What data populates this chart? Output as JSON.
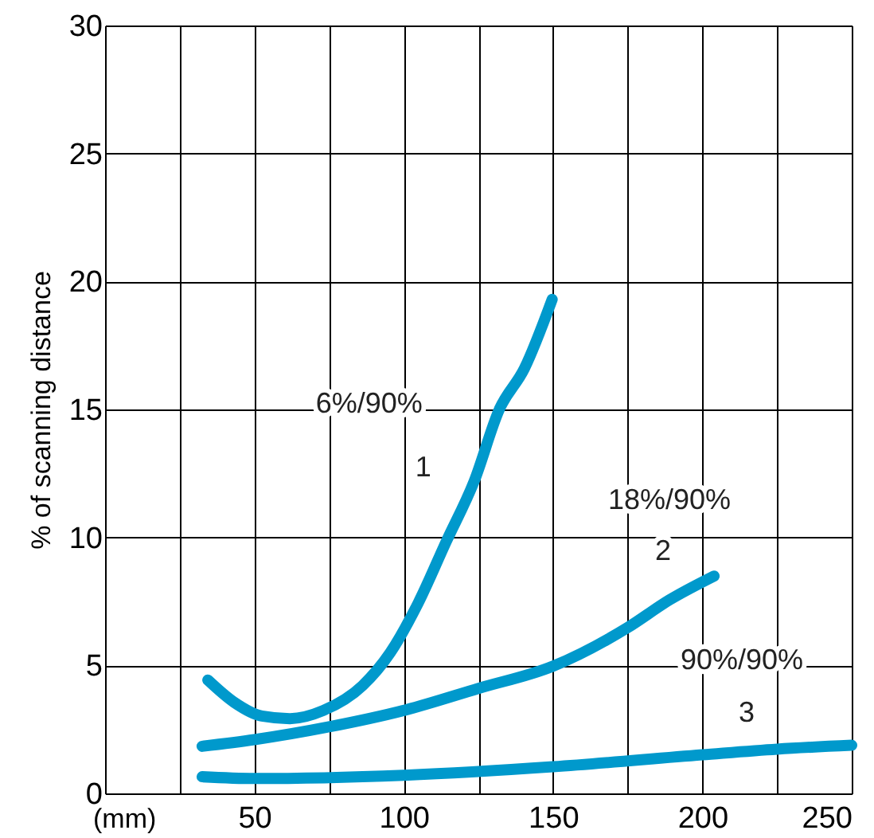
{
  "chart_data": {
    "type": "line",
    "xlabel": "(mm)",
    "ylabel": "% of scanning distance",
    "xlim": [
      0,
      250
    ],
    "ylim": [
      0,
      30
    ],
    "xticks": [
      {
        "value": 0,
        "label": null
      },
      {
        "value": 25,
        "label": null
      },
      50,
      {
        "value": 75,
        "label": null
      },
      100,
      {
        "value": 125,
        "label": null
      },
      150,
      {
        "value": 175,
        "label": null
      },
      200,
      {
        "value": 225,
        "label": null
      },
      250
    ],
    "yticks": [
      0,
      5,
      10,
      15,
      20,
      25,
      30
    ],
    "grid": true,
    "line_style": "solid",
    "series": [
      {
        "color": "#0099cc",
        "x": [
          34.4,
          43.2,
          52.5,
          61.9,
          73.1,
          86.2,
          95.5,
          104.9,
          114.2,
          123.6,
          132,
          140.4,
          149.7
        ],
        "values": [
          4.43,
          3.56,
          3.02,
          2.92,
          3.24,
          4.21,
          5.5,
          7.45,
          9.83,
          12.2,
          15,
          16.6,
          19.3
        ]
      },
      {
        "color": "#0099cc",
        "x": [
          32.5,
          50,
          75,
          100,
          125,
          150,
          175,
          189,
          203.9
        ],
        "values": [
          1.84,
          2.1,
          2.6,
          3.24,
          4.1,
          4.97,
          6.48,
          7.56,
          8.49
        ]
      },
      {
        "color": "#0099cc",
        "x": [
          32.5,
          50,
          100,
          150,
          200,
          225,
          250
        ],
        "values": [
          0.65,
          0.58,
          0.71,
          1.04,
          1.51,
          1.73,
          1.88
        ]
      }
    ],
    "annotations": [
      "6%/90%",
      "1",
      "18%/90%",
      "2",
      "90%/90%",
      "3"
    ]
  }
}
